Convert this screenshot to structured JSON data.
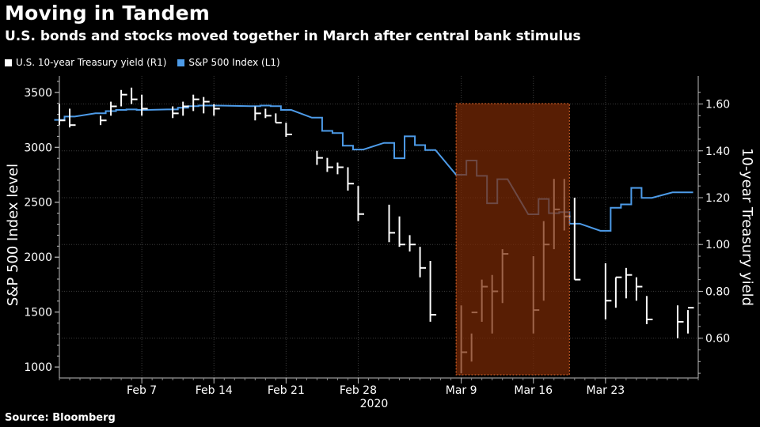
{
  "title": "Moving in Tandem",
  "subtitle": "U.S. bonds and stocks moved together in March after central bank stimulus",
  "source": "Source: Bloomberg",
  "colors": {
    "background": "#000000",
    "treasury": "#ffffff",
    "spx": "#4d9be8",
    "highlight": "#7a2a06",
    "highlight_border": "#e2682c"
  },
  "chart_data": {
    "type": "line",
    "title": "Moving in Tandem",
    "subtitle": "U.S. bonds and stocks moved together in March after central bank stimulus",
    "x_ticks": [
      "Feb 7",
      "Feb 14",
      "Feb 21",
      "Feb 28",
      "Mar 9",
      "Mar 16",
      "Mar 23"
    ],
    "x_year": "2020",
    "ylabel_left": "S&P 500 Index level",
    "ylabel_right": "10-year Treasury yield",
    "left_ticks": [
      "1000",
      "1500",
      "2000",
      "2500",
      "3000",
      "3500"
    ],
    "right_ticks": [
      "0.60",
      "0.80",
      "1.00",
      "1.20",
      "1.40",
      "1.60"
    ],
    "ylim_left": [
      900,
      3650
    ],
    "ylim_right": [
      0.43,
      1.72
    ],
    "grid": true,
    "legend_position": "top-left",
    "highlight_range": [
      "Mar 9",
      "Mar 19"
    ],
    "series": [
      {
        "name": "U.S. 10-year Treasury yield (R1)",
        "axis": "right",
        "style": "hlc-bars",
        "x": [
          "Jan 30",
          "Jan 31",
          "Feb 3",
          "Feb 4",
          "Feb 5",
          "Feb 6",
          "Feb 7",
          "Feb 10",
          "Feb 11",
          "Feb 12",
          "Feb 13",
          "Feb 14",
          "Feb 18",
          "Feb 19",
          "Feb 20",
          "Feb 21",
          "Feb 24",
          "Feb 25",
          "Feb 26",
          "Feb 27",
          "Feb 28",
          "Mar 2",
          "Mar 3",
          "Mar 4",
          "Mar 5",
          "Mar 6",
          "Mar 9",
          "Mar 10",
          "Mar 11",
          "Mar 12",
          "Mar 13",
          "Mar 16",
          "Mar 17",
          "Mar 18",
          "Mar 19",
          "Mar 20",
          "Mar 23",
          "Mar 24",
          "Mar 25",
          "Mar 26",
          "Mar 27",
          "Mar 30",
          "Mar 31"
        ],
        "high": [
          1.6,
          1.58,
          1.55,
          1.61,
          1.66,
          1.67,
          1.64,
          1.59,
          1.61,
          1.64,
          1.63,
          1.6,
          1.59,
          1.58,
          1.56,
          1.52,
          1.4,
          1.37,
          1.35,
          1.33,
          1.25,
          1.17,
          1.12,
          1.04,
          0.99,
          0.93,
          0.74,
          0.62,
          0.85,
          0.87,
          0.98,
          0.95,
          1.1,
          1.28,
          1.28,
          1.2,
          0.92,
          0.86,
          0.9,
          0.86,
          0.78,
          0.74,
          0.72
        ],
        "low": [
          1.51,
          1.5,
          1.51,
          1.55,
          1.59,
          1.6,
          1.55,
          1.54,
          1.55,
          1.57,
          1.56,
          1.55,
          1.53,
          1.54,
          1.52,
          1.46,
          1.34,
          1.31,
          1.3,
          1.23,
          1.1,
          1.01,
          0.99,
          0.97,
          0.86,
          0.67,
          0.45,
          0.5,
          0.67,
          0.62,
          0.75,
          0.62,
          0.76,
          0.98,
          1.06,
          0.85,
          0.68,
          0.73,
          0.77,
          0.76,
          0.66,
          0.6,
          0.62
        ],
        "close": [
          1.53,
          1.51,
          1.53,
          1.59,
          1.64,
          1.62,
          1.58,
          1.56,
          1.59,
          1.62,
          1.61,
          1.58,
          1.56,
          1.55,
          1.52,
          1.47,
          1.37,
          1.33,
          1.33,
          1.26,
          1.13,
          1.05,
          1.0,
          1.0,
          0.9,
          0.7,
          0.54,
          0.71,
          0.82,
          0.8,
          0.96,
          0.72,
          1.0,
          1.15,
          1.12,
          0.85,
          0.76,
          0.86,
          0.87,
          0.82,
          0.68,
          0.67,
          0.73
        ]
      },
      {
        "name": "S&P 500 Index (L1)",
        "axis": "left",
        "style": "step",
        "x": [
          "Jan 30",
          "Jan 31",
          "Feb 3",
          "Feb 4",
          "Feb 5",
          "Feb 6",
          "Feb 7",
          "Feb 10",
          "Feb 11",
          "Feb 12",
          "Feb 13",
          "Feb 14",
          "Feb 18",
          "Feb 19",
          "Feb 20",
          "Feb 21",
          "Feb 24",
          "Feb 25",
          "Feb 26",
          "Feb 27",
          "Feb 28",
          "Mar 2",
          "Mar 3",
          "Mar 4",
          "Mar 5",
          "Mar 6",
          "Mar 9",
          "Mar 10",
          "Mar 11",
          "Mar 12",
          "Mar 13",
          "Mar 16",
          "Mar 17",
          "Mar 18",
          "Mar 19",
          "Mar 20",
          "Mar 23",
          "Mar 24",
          "Mar 25",
          "Mar 26",
          "Mar 27",
          "Mar 30",
          "Mar 31"
        ],
        "values": [
          3250,
          3280,
          3310,
          3330,
          3340,
          3345,
          3340,
          3345,
          3360,
          3375,
          3380,
          3380,
          3375,
          3380,
          3375,
          3340,
          3270,
          3150,
          3130,
          3015,
          2980,
          3040,
          2900,
          3100,
          3020,
          2975,
          2750,
          2880,
          2740,
          2490,
          2710,
          2390,
          2530,
          2400,
          2410,
          2305,
          2240,
          2450,
          2480,
          2630,
          2540,
          2590,
          2590
        ]
      }
    ]
  }
}
